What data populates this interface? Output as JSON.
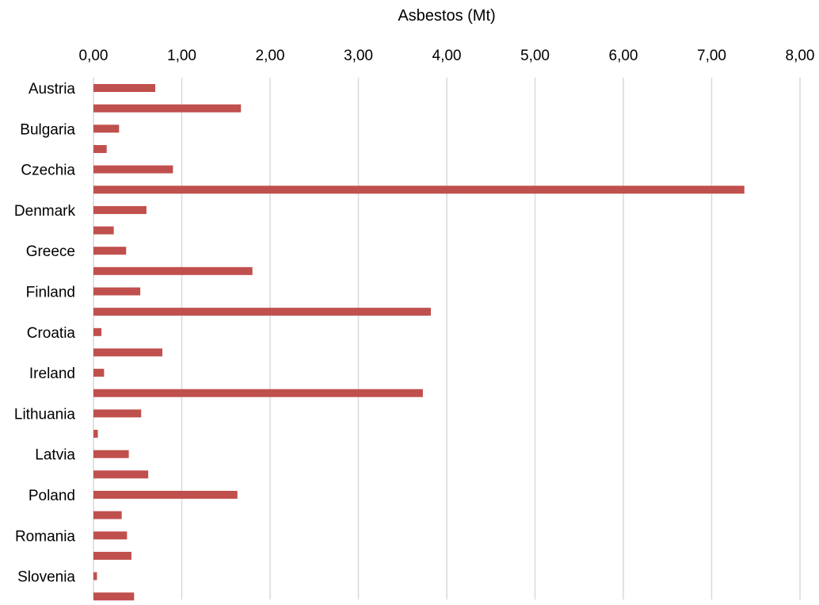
{
  "chart_data": {
    "type": "bar",
    "orientation": "horizontal",
    "xlabel": "Asbestos (Mt)",
    "ylabel": "",
    "xlim": [
      0,
      8
    ],
    "x_axis_position": "top",
    "grid": true,
    "legend": "none",
    "bar_color": "#c0504d",
    "grid_color": "#d9d9d9",
    "tick_labels": [
      "0,00",
      "1,00",
      "2,00",
      "3,00",
      "4,00",
      "5,00",
      "6,00",
      "7,00",
      "8,00"
    ],
    "ticks": [
      0,
      1,
      2,
      3,
      4,
      5,
      6,
      7,
      8
    ],
    "categories": [
      "Austria",
      "",
      "Bulgaria",
      "",
      "Czechia",
      "",
      "Denmark",
      "",
      "Greece",
      "",
      "Finland",
      "",
      "Croatia",
      "",
      "Ireland",
      "",
      "Lithuania",
      "",
      "Latvia",
      "",
      "Poland",
      "",
      "Romania",
      "",
      "Slovenia",
      ""
    ],
    "values": [
      0.7,
      1.67,
      0.29,
      0.15,
      0.9,
      7.37,
      0.6,
      0.23,
      0.37,
      1.8,
      0.53,
      3.82,
      0.09,
      0.78,
      0.12,
      3.73,
      0.54,
      0.05,
      0.4,
      0.62,
      1.63,
      0.32,
      0.38,
      0.43,
      0.04,
      0.46
    ]
  }
}
